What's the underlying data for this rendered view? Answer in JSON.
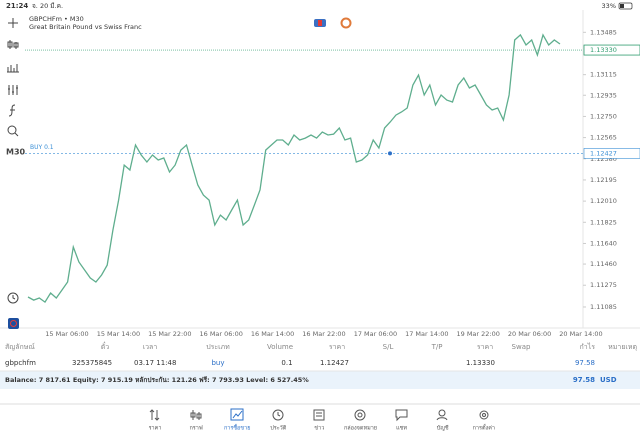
{
  "status_bar": {
    "time": "21:24",
    "date": "จ. 20 มี.ค.",
    "battery": "33%"
  },
  "chart_data": {
    "type": "line",
    "title": "GBPCHFm • M30",
    "subtitle": "Great Britain Pound vs Swiss Franc",
    "timeframe": "M30",
    "series": [
      {
        "color": "#5fae8e",
        "values": [
          1.11172,
          1.11145,
          1.11163,
          1.11128,
          1.11207,
          1.11163,
          1.11233,
          1.11303,
          1.11609,
          1.11478,
          1.11408,
          1.11338,
          1.11303,
          1.11364,
          1.11451,
          1.11757,
          1.12019,
          1.12325,
          1.12282,
          1.125,
          1.12413,
          1.12352,
          1.12413,
          1.12369,
          1.12387,
          1.12264,
          1.12325,
          1.12456,
          1.125,
          1.12325,
          1.12151,
          1.12063,
          1.12019,
          1.11801,
          1.11888,
          1.11845,
          1.11932,
          1.12019,
          1.11801,
          1.11845,
          1.11976,
          1.12107,
          1.12456,
          1.125,
          1.12544,
          1.12544,
          1.125,
          1.12588,
          1.12544,
          1.12561,
          1.12588,
          1.12561,
          1.12614,
          1.12588,
          1.12596,
          1.12649,
          1.12544,
          1.12561,
          1.12352,
          1.12369,
          1.12413,
          1.12544,
          1.12474,
          1.12649,
          1.12701,
          1.12762,
          1.12789,
          1.12824,
          1.13025,
          1.13112,
          1.12937,
          1.13025,
          1.1285,
          1.12937,
          1.12893,
          1.12876,
          1.13025,
          1.13086,
          1.12998,
          1.13025,
          1.12937,
          1.1285,
          1.12806,
          1.12824,
          1.12719,
          1.12937,
          1.13418,
          1.13462,
          1.13374,
          1.13418,
          1.13287,
          1.13462,
          1.13374,
          1.13418,
          1.13383
        ]
      }
    ],
    "xtick_labels": [
      "15 Mar 06:00",
      "15 Mar 14:00",
      "15 Mar 22:00",
      "16 Mar 06:00",
      "16 Mar 14:00",
      "16 Mar 22:00",
      "17 Mar 06:00",
      "17 Mar 14:00",
      "19 Mar 22:00",
      "20 Mar 06:00",
      "20 Mar 14:00"
    ],
    "ylim": [
      1.1091,
      1.1368
    ],
    "yticks": [
      1.13485,
      1.13115,
      1.12935,
      {
        "value": 1.1275,
        "label": "1.12750"
      },
      1.12565,
      {
        "value": 1.1238,
        "label": "1.12380"
      },
      1.12195,
      {
        "value": 1.1201,
        "label": "1.12010"
      },
      1.11825,
      {
        "value": 1.1164,
        "label": "1.11640"
      },
      {
        "value": 1.1146,
        "label": "1.11460"
      },
      1.11275,
      1.11085
    ],
    "current_price": {
      "value": 1.1333,
      "label": "1.13330",
      "color": "#2e9b6e"
    },
    "order": {
      "label": "BUY 0.1",
      "price": 1.12427,
      "color": "#3a8fd6"
    }
  },
  "table": {
    "headers": [
      "สัญลักษณ์",
      "ตั๋ว",
      "เวลา",
      "ประเภท",
      "Volume",
      "ราคา",
      "S/L",
      "T/P",
      "ราคา",
      "Swap",
      "กำไร",
      "หมายเหตุ"
    ],
    "row": {
      "symbol": "gbpchfm",
      "ticket": "325375845",
      "time": "03.17 11:48",
      "type": "buy",
      "volume": "0.1",
      "price_open": "1.12427",
      "price_current": "1.13330",
      "profit": "97.58"
    },
    "balance": {
      "text": "Balance: 7 817.61 Equity: 7 915.19 หลักประกัน: 121.26 ฟรี: 7 793.93 Level: 6 527.45%",
      "profit": "97.58",
      "currency": "USD"
    }
  },
  "tabs": [
    "ราคา",
    "กราฟ",
    "การซื้อขาย",
    "ประวัติ",
    "ข่าว",
    "กล่องจดหมาย",
    "แชท",
    "บัญชี",
    "การตั้งค่า"
  ]
}
